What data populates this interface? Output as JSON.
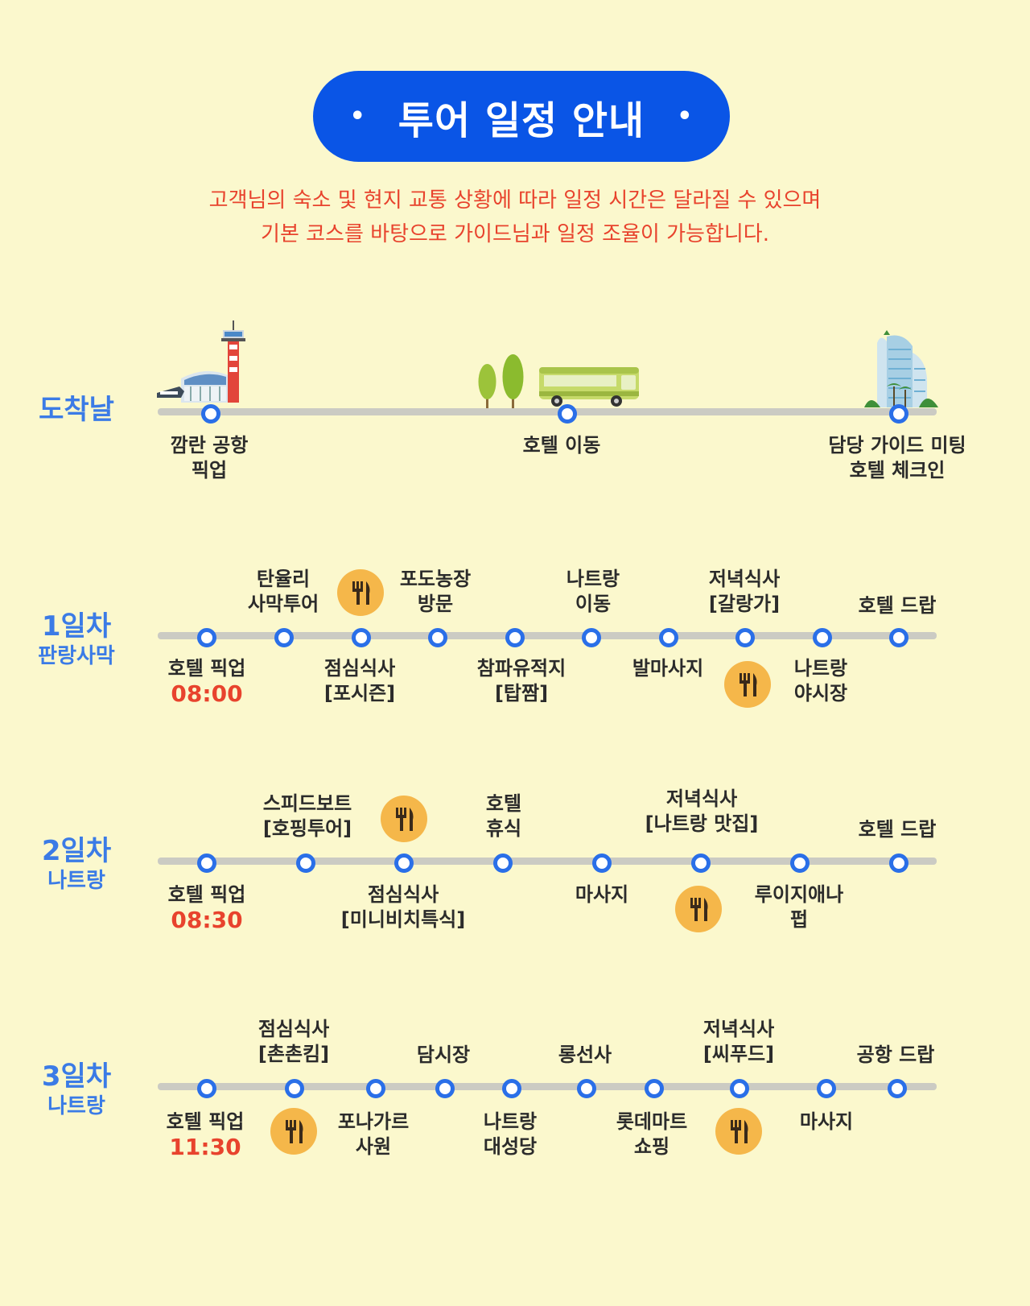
{
  "title": "투어 일정 안내",
  "title_dot": "•",
  "notice": {
    "line1": "고객님의 숙소 및 현지 교통 상황에 따라 일정 시간은 달라질 수 있으며",
    "line2": "기본 코스를 바탕으로 가이드님과 일정 조율이 가능합니다."
  },
  "colors": {
    "background": "#fbf8cd",
    "title_bg": "#0a55e6",
    "accent_red": "#e8432d",
    "day_blue": "#3b7be6",
    "node_blue": "#2a6fe8",
    "meal_orange": "#f5b74a"
  },
  "arrival": {
    "day": "도착날",
    "stops": [
      {
        "line1": "깜란 공항",
        "line2": "픽업"
      },
      {
        "line1": "호텔 이동",
        "line2": ""
      },
      {
        "line1": "담당 가이드 미팅",
        "line2": "호텔 체크인"
      }
    ],
    "icons": [
      "airport-icon",
      "trees-icon",
      "bus-icon",
      "hotel-icon"
    ]
  },
  "day1": {
    "day": "1일차",
    "place": "판랑사막",
    "start": "호텔 픽업",
    "time": "08:00",
    "top": [
      {
        "line1": "탄율리",
        "line2": "사막투어"
      },
      {
        "line1": "포도농장",
        "line2": "방문"
      },
      {
        "line1": "나트랑",
        "line2": "이동"
      },
      {
        "line1": "저녁식사",
        "line2": "[갈랑가]"
      },
      {
        "line1": "호텔 드랍",
        "line2": ""
      }
    ],
    "bottom": [
      {
        "line1": "점심식사",
        "line2": "[포시즌]"
      },
      {
        "line1": "참파유적지",
        "line2": "[탑짬]"
      },
      {
        "line1": "발마사지",
        "line2": ""
      },
      {
        "line1": "나트랑",
        "line2": "야시장"
      }
    ]
  },
  "day2": {
    "day": "2일차",
    "place": "나트랑",
    "start": "호텔 픽업",
    "time": "08:30",
    "top": [
      {
        "line1": "스피드보트",
        "line2": "[호핑투어]"
      },
      {
        "line1": "호텔",
        "line2": "휴식"
      },
      {
        "line1": "저녁식사",
        "line2": "[나트랑 맛집]"
      },
      {
        "line1": "호텔 드랍",
        "line2": ""
      }
    ],
    "bottom": [
      {
        "line1": "점심식사",
        "line2": "[미니비치특식]"
      },
      {
        "line1": "마사지",
        "line2": ""
      },
      {
        "line1": "루이지애나",
        "line2": "펍"
      }
    ]
  },
  "day3": {
    "day": "3일차",
    "place": "나트랑",
    "start": "호텔 픽업",
    "time": "11:30",
    "top": [
      {
        "line1": "점심식사",
        "line2": "[촌촌킴]"
      },
      {
        "line1": "담시장",
        "line2": ""
      },
      {
        "line1": "롱선사",
        "line2": ""
      },
      {
        "line1": "저녁식사",
        "line2": "[씨푸드]"
      },
      {
        "line1": "공항 드랍",
        "line2": ""
      }
    ],
    "bottom": [
      {
        "line1": "포나가르",
        "line2": "사원"
      },
      {
        "line1": "나트랑",
        "line2": "대성당"
      },
      {
        "line1": "롯데마트",
        "line2": "쇼핑"
      },
      {
        "line1": "마사지",
        "line2": ""
      }
    ]
  }
}
